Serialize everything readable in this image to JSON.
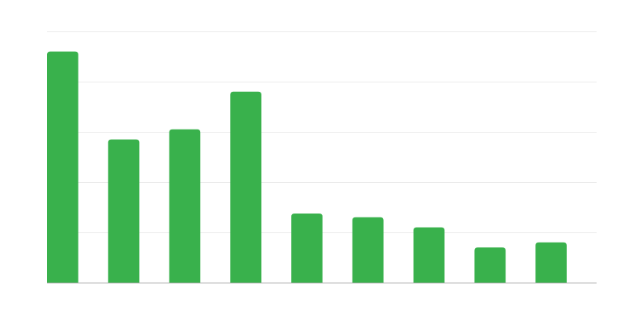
{
  "chart_data": {
    "type": "bar",
    "categories": [
      "",
      "",
      "",
      "",
      "",
      "",
      "",
      "",
      ""
    ],
    "values": [
      92,
      57,
      61,
      76,
      27.5,
      26,
      22,
      14,
      16
    ],
    "title": "",
    "xlabel": "",
    "ylabel": "",
    "ylim": [
      0,
      100
    ],
    "yticks": [
      0,
      20,
      40,
      60,
      80,
      100
    ],
    "grid": true,
    "legend": "none",
    "colors": {
      "bar": "#39b14c",
      "grid": "#ebebeb",
      "axis": "#a8a8a8"
    }
  }
}
